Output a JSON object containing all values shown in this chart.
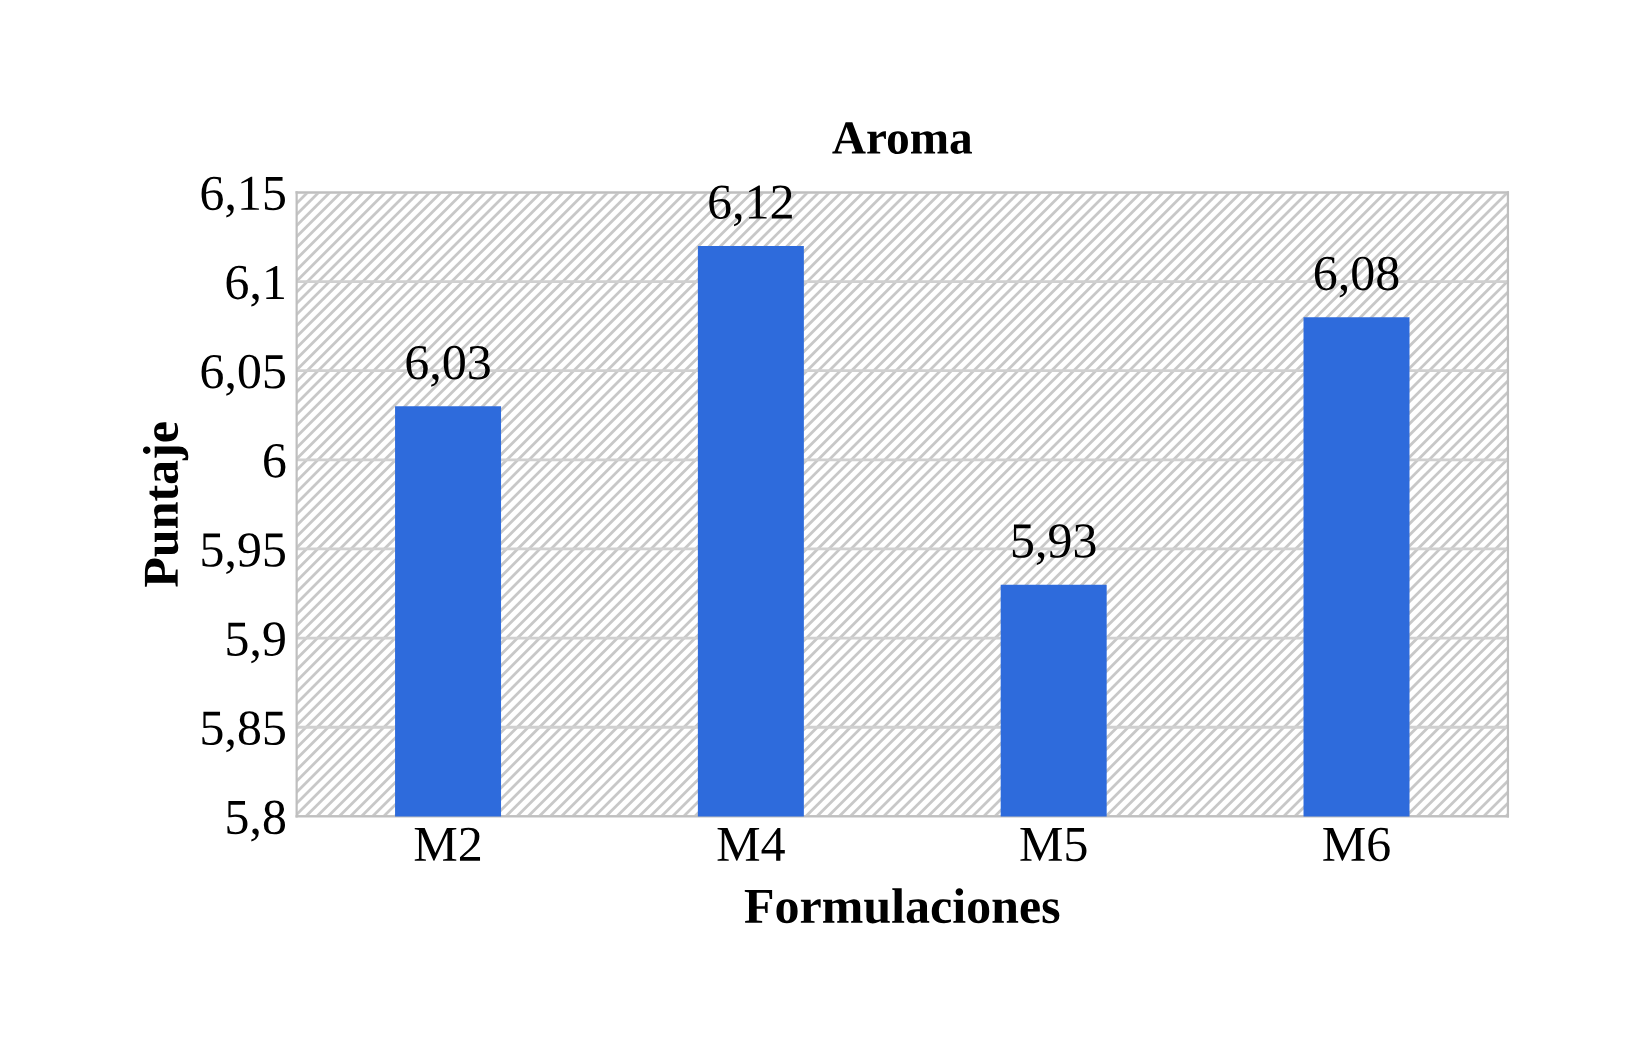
{
  "chart_data": {
    "type": "bar",
    "title": "Aroma",
    "xlabel": "Formulaciones",
    "ylabel": "Puntaje",
    "categories": [
      "M2",
      "M4",
      "M5",
      "M6"
    ],
    "values": [
      6.03,
      6.12,
      5.93,
      6.08
    ],
    "value_labels": [
      "6,03",
      "6,12",
      "5,93",
      "6,08"
    ],
    "color": "#2e6bdc",
    "ylim": [
      5.8,
      6.15
    ],
    "yticks": [
      {
        "value": 5.8,
        "label": "5,8"
      },
      {
        "value": 5.85,
        "label": "5,85"
      },
      {
        "value": 5.9,
        "label": "5,9"
      },
      {
        "value": 5.95,
        "label": "5,95"
      },
      {
        "value": 6.0,
        "label": "6"
      },
      {
        "value": 6.05,
        "label": "6,05"
      },
      {
        "value": 6.1,
        "label": "6,1"
      },
      {
        "value": 6.15,
        "label": "6,15"
      }
    ],
    "grid": "y"
  }
}
